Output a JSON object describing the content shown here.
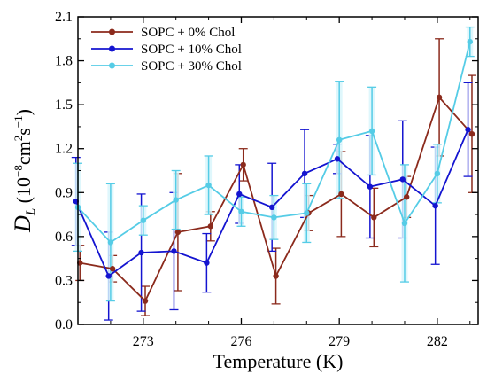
{
  "chart_data": {
    "type": "line",
    "title": "",
    "xlabel": "Temperature (K)",
    "ylabel": {
      "main": "D",
      "sub": "L",
      "unit_prefix": " (10",
      "exp1": "−8",
      "unit_mid": "cm",
      "exp2": "2",
      "unit_mid2": "s",
      "exp3": "−1",
      "unit_suffix": ")"
    },
    "xlim": [
      271,
      283.25
    ],
    "ylim": [
      0.0,
      2.1
    ],
    "xticks": [
      273,
      276,
      279,
      282
    ],
    "xtick_labels": [
      "273",
      "276",
      "279",
      "282"
    ],
    "yticks": [
      0.0,
      0.3,
      0.6,
      0.9,
      1.2,
      1.5,
      1.8,
      2.1
    ],
    "ytick_labels": [
      "0.0",
      "0.3",
      "0.6",
      "0.9",
      "1.2",
      "1.5",
      "1.8",
      "2.1"
    ],
    "legend_position": "top-left",
    "grid": false,
    "x": [
      271,
      272,
      273,
      274,
      275,
      276,
      277,
      278,
      279,
      280,
      281,
      282,
      283
    ],
    "series": [
      {
        "name": "SOPC + 0% Chol",
        "color": "#8B2A1C",
        "values": [
          0.42,
          0.38,
          0.16,
          0.63,
          0.67,
          1.09,
          0.33,
          0.76,
          0.89,
          0.73,
          0.87,
          1.55,
          1.3
        ],
        "errors": [
          0.12,
          0.09,
          0.1,
          0.4,
          0.1,
          0.11,
          0.19,
          0.12,
          0.29,
          0.2,
          0.14,
          0.4,
          0.4
        ]
      },
      {
        "name": "SOPC + 10% Chol",
        "color": "#1414D0",
        "values": [
          0.84,
          0.33,
          0.49,
          0.5,
          0.42,
          0.89,
          0.8,
          1.03,
          1.13,
          0.94,
          0.99,
          0.81,
          1.33
        ],
        "errors": [
          0.3,
          0.3,
          0.4,
          0.4,
          0.2,
          0.2,
          0.3,
          0.3,
          0.1,
          0.35,
          0.4,
          0.4,
          0.32
        ]
      },
      {
        "name": "SOPC + 30% Chol",
        "color": "#55CCE6",
        "values": [
          0.8,
          0.56,
          0.71,
          0.85,
          0.95,
          0.77,
          0.73,
          0.76,
          1.26,
          1.32,
          0.69,
          1.03,
          1.93
        ],
        "errors": [
          0.3,
          0.4,
          0.1,
          0.2,
          0.2,
          0.1,
          0.15,
          0.2,
          0.4,
          0.3,
          0.4,
          0.2,
          0.1
        ]
      }
    ]
  }
}
